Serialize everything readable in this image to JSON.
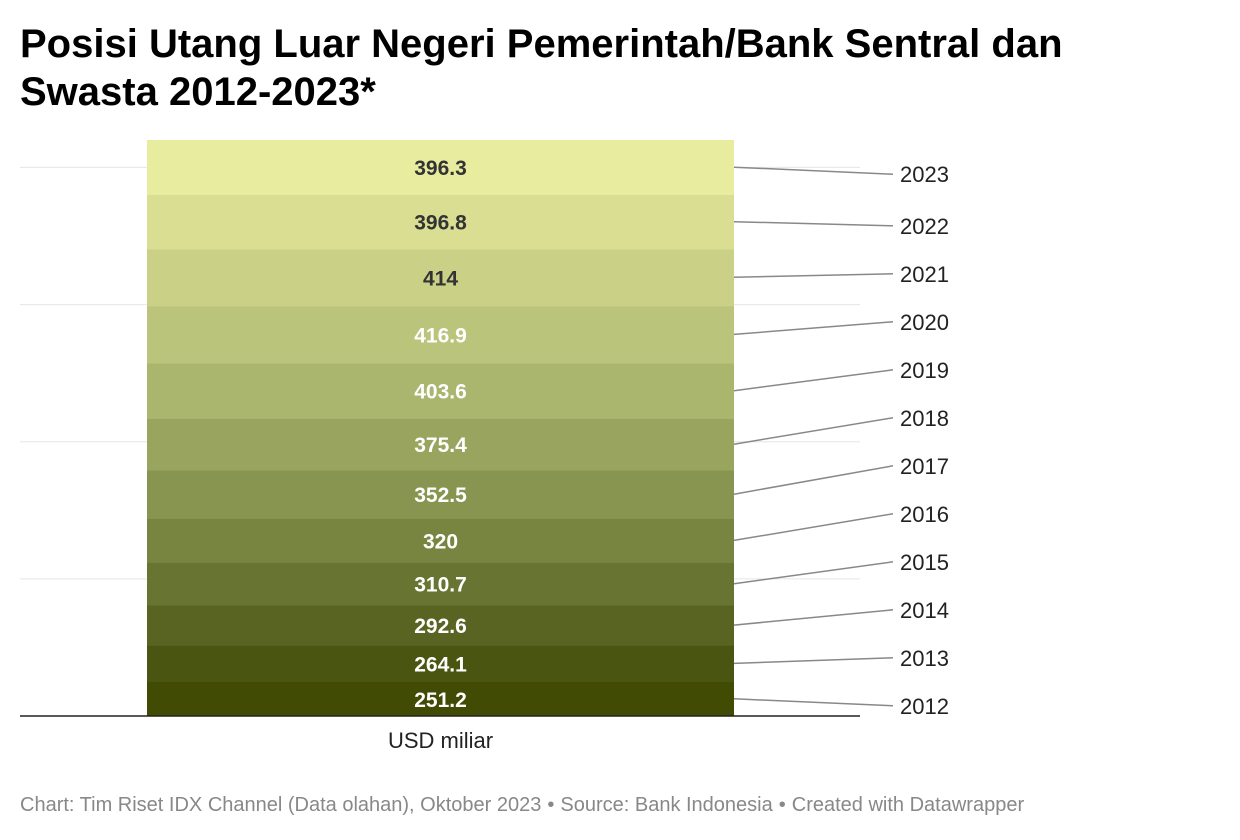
{
  "title": "Posisi Utang Luar Negeri Pemerintah/Bank Sentral dan Swasta 2012-2023*",
  "footer": {
    "chart_credit": "Chart: Tim Riset IDX Channel (Data olahan), Oktober 2023",
    "separator": "•",
    "source": "Source: Bank Indonesia",
    "created_with": "Created with Datawrapper"
  },
  "chart_data": {
    "type": "bar",
    "stacked": true,
    "orientation": "vertical",
    "xlabel": "USD miliar",
    "categories": [
      "USD miliar"
    ],
    "grid": true,
    "series": [
      {
        "name": "2012",
        "value": 251.2,
        "label": "251.2",
        "color": "#414b03"
      },
      {
        "name": "2013",
        "value": 264.1,
        "label": "264.1",
        "color": "#4b5512"
      },
      {
        "name": "2014",
        "value": 292.6,
        "label": "292.6",
        "color": "#5a6422"
      },
      {
        "name": "2015",
        "value": 310.7,
        "label": "310.7",
        "color": "#687431"
      },
      {
        "name": "2016",
        "value": 320,
        "label": "320",
        "color": "#788540"
      },
      {
        "name": "2017",
        "value": 352.5,
        "label": "352.5",
        "color": "#889550"
      },
      {
        "name": "2018",
        "value": 375.4,
        "label": "375.4",
        "color": "#99a55f"
      },
      {
        "name": "2019",
        "value": 403.6,
        "label": "403.6",
        "color": "#aab56d"
      },
      {
        "name": "2020",
        "value": 416.9,
        "label": "416.9",
        "color": "#bbc47b"
      },
      {
        "name": "2021",
        "value": 414,
        "label": "414",
        "color": "#cad187"
      },
      {
        "name": "2022",
        "value": 396.8,
        "label": "396.8",
        "color": "#d9de92"
      },
      {
        "name": "2023",
        "value": 396.3,
        "label": "396.3",
        "color": "#e8ec9e"
      }
    ]
  }
}
